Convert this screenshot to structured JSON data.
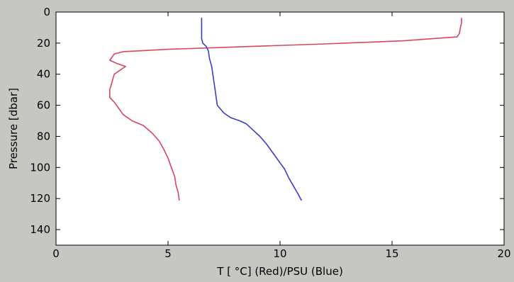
{
  "chart_data": {
    "type": "line",
    "xlabel": "T [$^\\circ$C] (Red)/PSU (Blue)",
    "xlabel_display": "T [ °C] (Red)/PSU (Blue)",
    "ylabel": "Pressure [dbar]",
    "xlim": [
      0,
      20
    ],
    "ylim": [
      150,
      0
    ],
    "y_inverted": true,
    "grid": false,
    "x_ticks": [
      0,
      5,
      10,
      15,
      20
    ],
    "y_ticks": [
      0,
      20,
      40,
      60,
      80,
      100,
      120,
      140
    ],
    "series": [
      {
        "color": "#d8455e",
        "points": [
          [
            18.1,
            4
          ],
          [
            18.1,
            7
          ],
          [
            18.05,
            10
          ],
          [
            18.0,
            14
          ],
          [
            17.9,
            16
          ],
          [
            15.5,
            18.5
          ],
          [
            12.0,
            20.5
          ],
          [
            8.0,
            22.5
          ],
          [
            5.0,
            24
          ],
          [
            3.0,
            25.5
          ],
          [
            2.6,
            27
          ],
          [
            2.5,
            29
          ],
          [
            2.4,
            31
          ],
          [
            2.7,
            33
          ],
          [
            3.1,
            35
          ],
          [
            2.9,
            37
          ],
          [
            2.6,
            40
          ],
          [
            2.5,
            45
          ],
          [
            2.4,
            50
          ],
          [
            2.4,
            55
          ],
          [
            2.6,
            58
          ],
          [
            2.8,
            62
          ],
          [
            3.0,
            66
          ],
          [
            3.4,
            70
          ],
          [
            3.9,
            73
          ],
          [
            4.3,
            78
          ],
          [
            4.6,
            83
          ],
          [
            4.8,
            88
          ],
          [
            5.0,
            94
          ],
          [
            5.15,
            100
          ],
          [
            5.3,
            106
          ],
          [
            5.35,
            111
          ],
          [
            5.45,
            116
          ],
          [
            5.5,
            121
          ]
        ]
      },
      {
        "color": "#3a3cc4",
        "points": [
          [
            6.5,
            4
          ],
          [
            6.5,
            10
          ],
          [
            6.5,
            17
          ],
          [
            6.55,
            20
          ],
          [
            6.7,
            22
          ],
          [
            6.8,
            25
          ],
          [
            6.85,
            30
          ],
          [
            6.95,
            35
          ],
          [
            7.0,
            40
          ],
          [
            7.05,
            45
          ],
          [
            7.1,
            50
          ],
          [
            7.15,
            55
          ],
          [
            7.2,
            60
          ],
          [
            7.5,
            65
          ],
          [
            7.8,
            68
          ],
          [
            8.2,
            70
          ],
          [
            8.5,
            72
          ],
          [
            8.8,
            76
          ],
          [
            9.1,
            80
          ],
          [
            9.4,
            85
          ],
          [
            9.7,
            91
          ],
          [
            10.0,
            97
          ],
          [
            10.2,
            101
          ],
          [
            10.4,
            107
          ],
          [
            10.6,
            112
          ],
          [
            10.8,
            117
          ],
          [
            10.95,
            121
          ]
        ]
      }
    ]
  }
}
